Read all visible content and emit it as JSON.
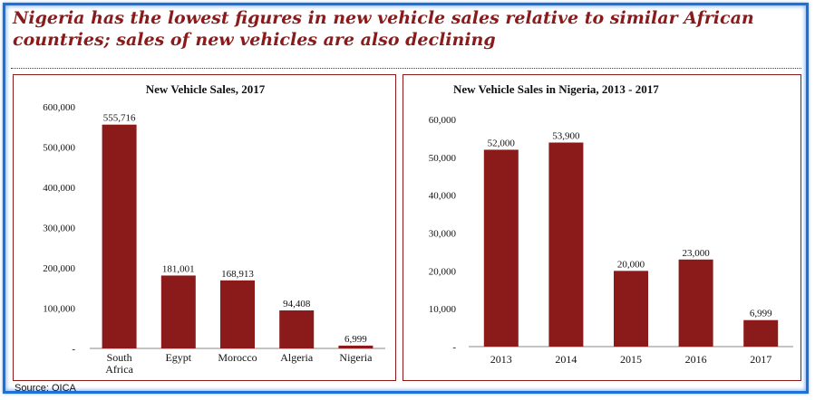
{
  "headline": "Nigeria has the lowest figures in new vehicle sales relative to similar African countries; sales of new vehicles are also declining",
  "source": "Source: OICA",
  "colors": {
    "bar": "#8b1a1a",
    "accent": "#8b1a1a",
    "frame": "#1f6fd6"
  },
  "chart_data": [
    {
      "type": "bar",
      "title": "New Vehicle Sales, 2017",
      "categories": [
        "South Africa",
        "Egypt",
        "Morocco",
        "Algeria",
        "Nigeria"
      ],
      "values": [
        555716,
        181001,
        168913,
        94408,
        6999
      ],
      "data_labels": [
        "555,716",
        "181,001",
        "168,913",
        "94,408",
        "6,999"
      ],
      "yticks": [
        0,
        100000,
        200000,
        300000,
        400000,
        500000,
        600000
      ],
      "ytick_labels": [
        "-",
        "100,000",
        "200,000",
        "300,000",
        "400,000",
        "500,000",
        "600,000"
      ],
      "ylim": [
        0,
        600000
      ],
      "xlabel": "",
      "ylabel": "",
      "grid": false
    },
    {
      "type": "bar",
      "title": "New Vehicle Sales in Nigeria, 2013 - 2017",
      "categories": [
        "2013",
        "2014",
        "2015",
        "2016",
        "2017"
      ],
      "values": [
        52000,
        53900,
        20000,
        23000,
        6999
      ],
      "data_labels": [
        "52,000",
        "53,900",
        "20,000",
        "23,000",
        "6,999"
      ],
      "yticks": [
        0,
        10000,
        20000,
        30000,
        40000,
        50000,
        60000
      ],
      "ytick_labels": [
        "-",
        "10,000",
        "20,000",
        "30,000",
        "40,000",
        "50,000",
        "60,000"
      ],
      "ylim": [
        0,
        60000
      ],
      "xlabel": "",
      "ylabel": "",
      "grid": false
    }
  ]
}
